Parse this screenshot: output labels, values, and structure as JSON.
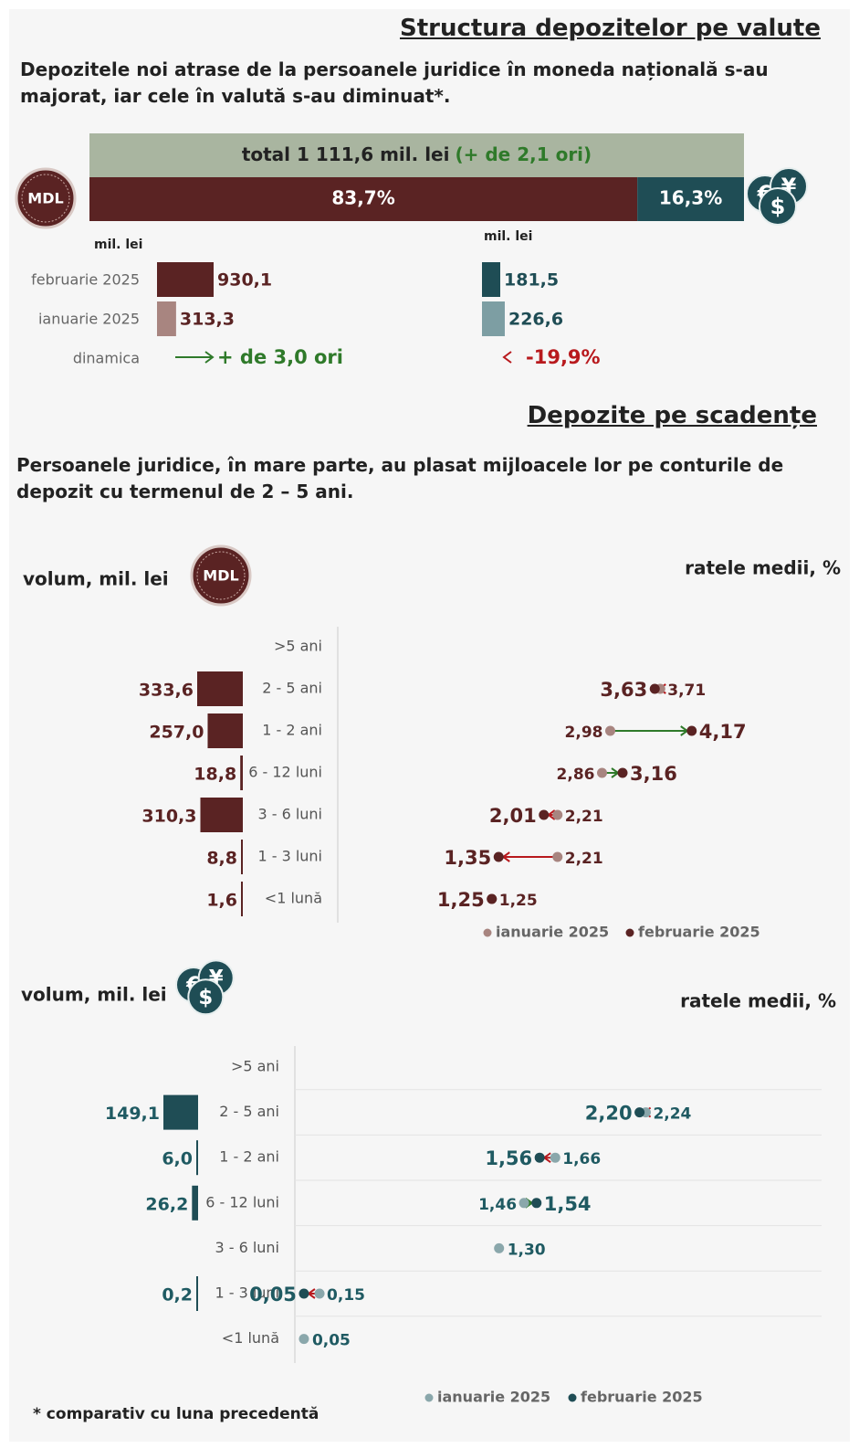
{
  "header": {
    "title": "Structura depozitelor pe valute",
    "subtitle": "Depozitele noi atrase de la persoanele juridice în moneda națională s-au majorat, iar cele în valută s-au diminuat*."
  },
  "currency_structure": {
    "total_label": "total 1 111,6 mil. lei",
    "total_change": "(+ de 2,1 ori)",
    "badge": "MDL",
    "currency_symbols": [
      "€",
      "$",
      "¥"
    ],
    "shares": [
      83.7,
      16.3
    ],
    "share_labels": [
      "83,7%",
      "16,3%"
    ],
    "share_colors": [
      "#5a2323",
      "#1f4d55"
    ],
    "unit_label": "mil. lei",
    "periods": [
      "februarie 2025",
      "ianuarie 2025"
    ],
    "dynamics_label": "dinamica",
    "mdl": {
      "values": [
        930.1,
        313.3
      ],
      "value_labels": [
        "930,1",
        "313,3"
      ],
      "colors": [
        "#5a2323",
        "#a88580"
      ],
      "dynamics": "+ de 3,0 ori"
    },
    "fx": {
      "values": [
        181.5,
        226.6
      ],
      "value_labels": [
        "181,5",
        "226,6"
      ],
      "colors": [
        "#1f4d55",
        "#7d9ea3"
      ],
      "dynamics": "-19,9%"
    }
  },
  "maturity": {
    "title": "Depozite pe scadențe",
    "subtitle": "Persoanele juridice, în mare parte, au plasat mijloacele lor pe conturile de depozit cu termenul de 2 – 5 ani.",
    "volume_label": "volum, mil. lei",
    "rates_label": "ratele medii, %",
    "legend": [
      "ianuarie 2025",
      "februarie 2025"
    ],
    "categories": [
      ">5 ani",
      "2 - 5 ani",
      "1 - 2 ani",
      "6 - 12 luni",
      "3 - 6 luni",
      "1 - 3 luni",
      "<1 lună"
    ],
    "mdl": {
      "colors": [
        "#a88580",
        "#5a2323"
      ],
      "volumes": [
        null,
        333.6,
        257.0,
        18.8,
        310.3,
        8.8,
        1.6
      ],
      "volume_labels": [
        null,
        "333,6",
        "257,0",
        "18,8",
        "310,3",
        "8,8",
        "1,6"
      ],
      "rates_jan": [
        null,
        3.71,
        2.98,
        2.86,
        2.21,
        2.21,
        1.25
      ],
      "rates_jan_labels": [
        null,
        "3,71",
        "2,98",
        "2,86",
        "2,21",
        "2,21",
        "1,25"
      ],
      "rates_feb": [
        null,
        3.63,
        4.17,
        3.16,
        2.01,
        1.35,
        1.25
      ],
      "rates_feb_labels": [
        null,
        "3,63",
        "4,17",
        "3,16",
        "2,01",
        "1,35",
        "1,25"
      ]
    },
    "fx": {
      "colors": [
        "#8aa7ab",
        "#1f4d55"
      ],
      "volumes": [
        null,
        149.1,
        6.0,
        26.2,
        null,
        0.2,
        null
      ],
      "volume_labels": [
        null,
        "149,1",
        "6,0",
        "26,2",
        null,
        "0,2",
        null
      ],
      "rates_jan": [
        null,
        2.24,
        1.66,
        1.46,
        1.3,
        0.15,
        0.05
      ],
      "rates_jan_labels": [
        null,
        "2,24",
        "1,66",
        "1,46",
        "1,30",
        "0,15",
        "0,05"
      ],
      "rates_feb": [
        null,
        2.2,
        1.56,
        1.54,
        null,
        0.05,
        null
      ],
      "rates_feb_labels": [
        null,
        "2,20",
        "1,56",
        "1,54",
        null,
        "0,05",
        null
      ]
    }
  },
  "footnote": "* comparativ cu luna precedentă"
}
